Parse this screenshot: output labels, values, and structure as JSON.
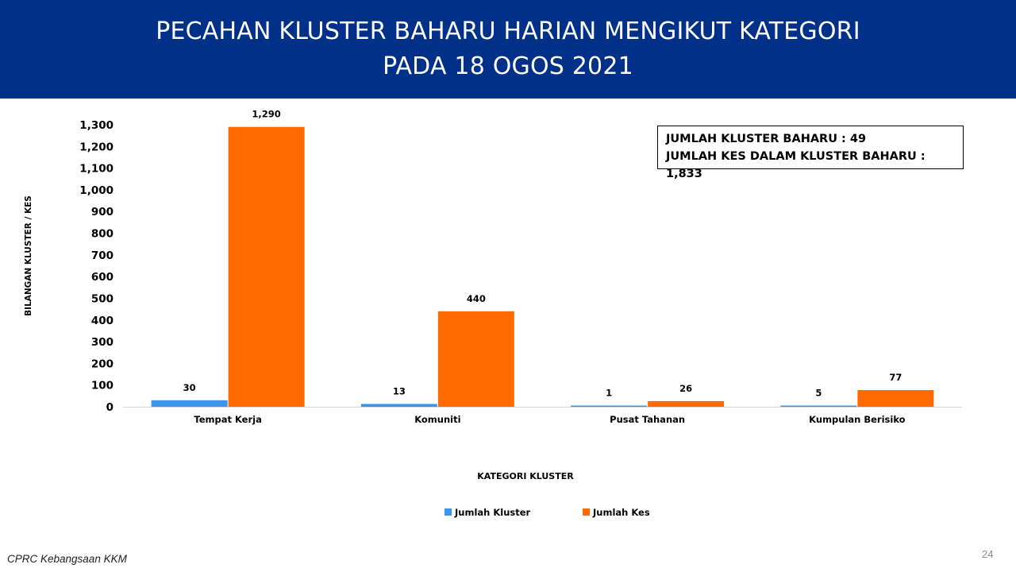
{
  "header": {
    "title_line1": "PECAHAN KLUSTER BAHARU HARIAN MENGIKUT KATEGORI",
    "title_line2": "PADA 18 OGOS 2021"
  },
  "summary": {
    "line1": "JUMLAH KLUSTER BAHARU : 49",
    "line2": "JUMLAH KES DALAM KLUSTER BAHARU : 1,833"
  },
  "footer": {
    "source": "CPRC Kebangsaan KKM",
    "page_number": "24"
  },
  "chart_data": {
    "type": "bar",
    "categories": [
      "Tempat Kerja",
      "Komuniti",
      "Pusat Tahanan",
      "Kumpulan Berisiko"
    ],
    "series": [
      {
        "name": "Jumlah Kluster",
        "values": [
          30,
          13,
          1,
          5
        ],
        "labels": [
          "30",
          "13",
          "1",
          "5"
        ],
        "color": "#3d95ea"
      },
      {
        "name": "Jumlah Kes",
        "values": [
          1290,
          440,
          26,
          77
        ],
        "labels": [
          "1,290",
          "440",
          "26",
          "77"
        ],
        "color": "#ff6a00"
      }
    ],
    "xlabel": "KATEGORI KLUSTER",
    "ylabel": "BILANGAN KLUSTER / KES",
    "ylim": [
      0,
      1300
    ],
    "yticks": [
      0,
      100,
      200,
      300,
      400,
      500,
      600,
      700,
      800,
      900,
      1000,
      1100,
      1200,
      1300
    ],
    "ytick_labels": [
      "0",
      "100",
      "200",
      "300",
      "400",
      "500",
      "600",
      "700",
      "800",
      "900",
      "1,000",
      "1,100",
      "1,200",
      "1,300"
    ],
    "grid": false,
    "legend_position": "bottom-center"
  }
}
